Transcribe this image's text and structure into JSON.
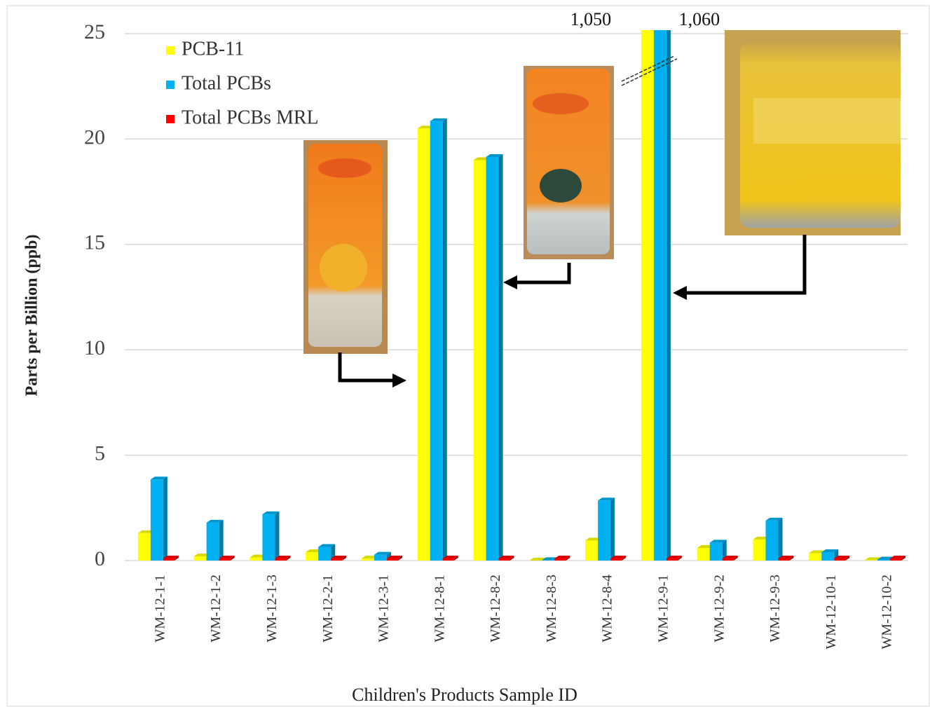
{
  "chart_data": {
    "type": "bar3d",
    "x_label": "Children's Products Sample ID",
    "y_label": "Parts per Billion (ppb)",
    "categories": [
      "WM-12-1-1",
      "WM-12-1-2",
      "WM-12-1-3",
      "WM-12-2-1",
      "WM-12-3-1",
      "WM-12-8-1",
      "WM-12-8-2",
      "WM-12-8-3",
      "WM-12-8-4",
      "WM-12-9-1",
      "WM-12-9-2",
      "WM-12-9-3",
      "WM-12-10-1",
      "WM-12-10-2"
    ],
    "series": [
      {
        "name": "PCB-11",
        "color": "#ffff00",
        "values": [
          1.3,
          0.2,
          0.15,
          0.4,
          0.1,
          20.5,
          19.0,
          0,
          0.95,
          1050,
          0.6,
          1.0,
          0.35,
          0.02
        ],
        "value_labels": [
          null,
          null,
          null,
          null,
          null,
          null,
          null,
          null,
          null,
          "1,050",
          null,
          null,
          null,
          null
        ]
      },
      {
        "name": "Total PCBs",
        "color": "#00b0f0",
        "values": [
          3.85,
          1.8,
          2.2,
          0.65,
          0.28,
          20.85,
          19.15,
          0.02,
          2.85,
          1060,
          0.85,
          1.9,
          0.4,
          0.05
        ],
        "value_labels": [
          null,
          null,
          null,
          null,
          null,
          null,
          null,
          null,
          null,
          "1,060",
          null,
          null,
          null,
          null
        ]
      },
      {
        "name": "Total PCBs MRL",
        "color": "#ff0000",
        "values": [
          0.1,
          0.1,
          0.1,
          0.1,
          0.1,
          0.1,
          0.1,
          0.1,
          0.1,
          0.1,
          0.1,
          0.1,
          0.1,
          0.1
        ]
      }
    ],
    "ylim": [
      0,
      25
    ],
    "yticks": [
      0,
      5,
      10,
      15,
      20,
      25
    ],
    "grid": true,
    "legend": "top-left"
  }
}
